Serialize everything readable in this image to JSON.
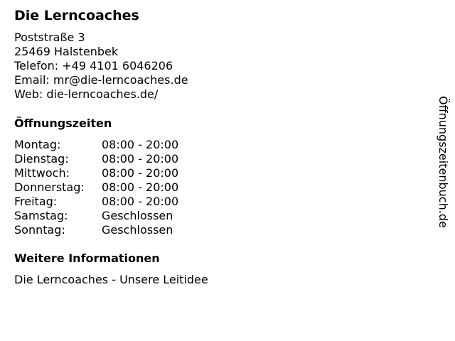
{
  "business": {
    "name": "Die Lerncoaches",
    "street": "Poststraße 3",
    "city": "25469 Halstenbek",
    "phone": "Telefon: +49 4101 6046206",
    "email": "Email: mr@die-lerncoaches.de",
    "web": "Web: die-lerncoaches.de/"
  },
  "hours": {
    "title": "Öffnungszeiten",
    "rows": [
      {
        "day": "Montag:",
        "time": "08:00 - 20:00"
      },
      {
        "day": "Dienstag:",
        "time": "08:00 - 20:00"
      },
      {
        "day": "Mittwoch:",
        "time": "08:00 - 20:00"
      },
      {
        "day": "Donnerstag:",
        "time": "08:00 - 20:00"
      },
      {
        "day": "Freitag:",
        "time": "08:00 - 20:00"
      },
      {
        "day": "Samstag:",
        "time": "Geschlossen"
      },
      {
        "day": "Sonntag:",
        "time": "Geschlossen"
      }
    ]
  },
  "info": {
    "title": "Weitere Informationen",
    "link": "Die Lerncoaches - Unsere Leitidee"
  },
  "watermark": "Öffnungszeitenbuch.de"
}
